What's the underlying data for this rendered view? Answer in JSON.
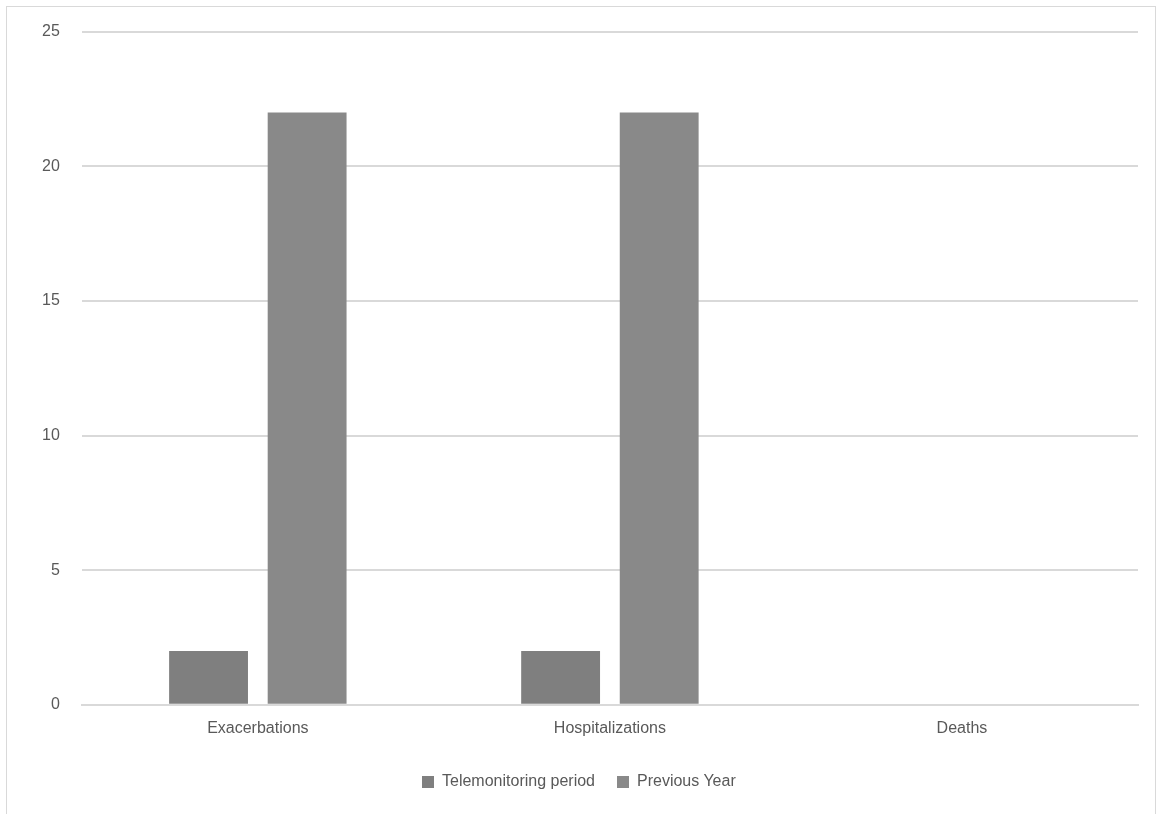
{
  "chart_data": {
    "type": "bar",
    "categories": [
      "Exacerbations",
      "Hospitalizations",
      "Deaths"
    ],
    "series": [
      {
        "name": "Telemonitoring period",
        "color": "#7f7f7f",
        "values": [
          2,
          2,
          0
        ]
      },
      {
        "name": "Previous Year",
        "color": "#898989",
        "values": [
          22,
          22,
          0
        ]
      }
    ],
    "ylim": [
      0,
      25
    ],
    "yticks": [
      0,
      5,
      10,
      15,
      20,
      25
    ],
    "grid": "y",
    "legend": "bottom"
  }
}
